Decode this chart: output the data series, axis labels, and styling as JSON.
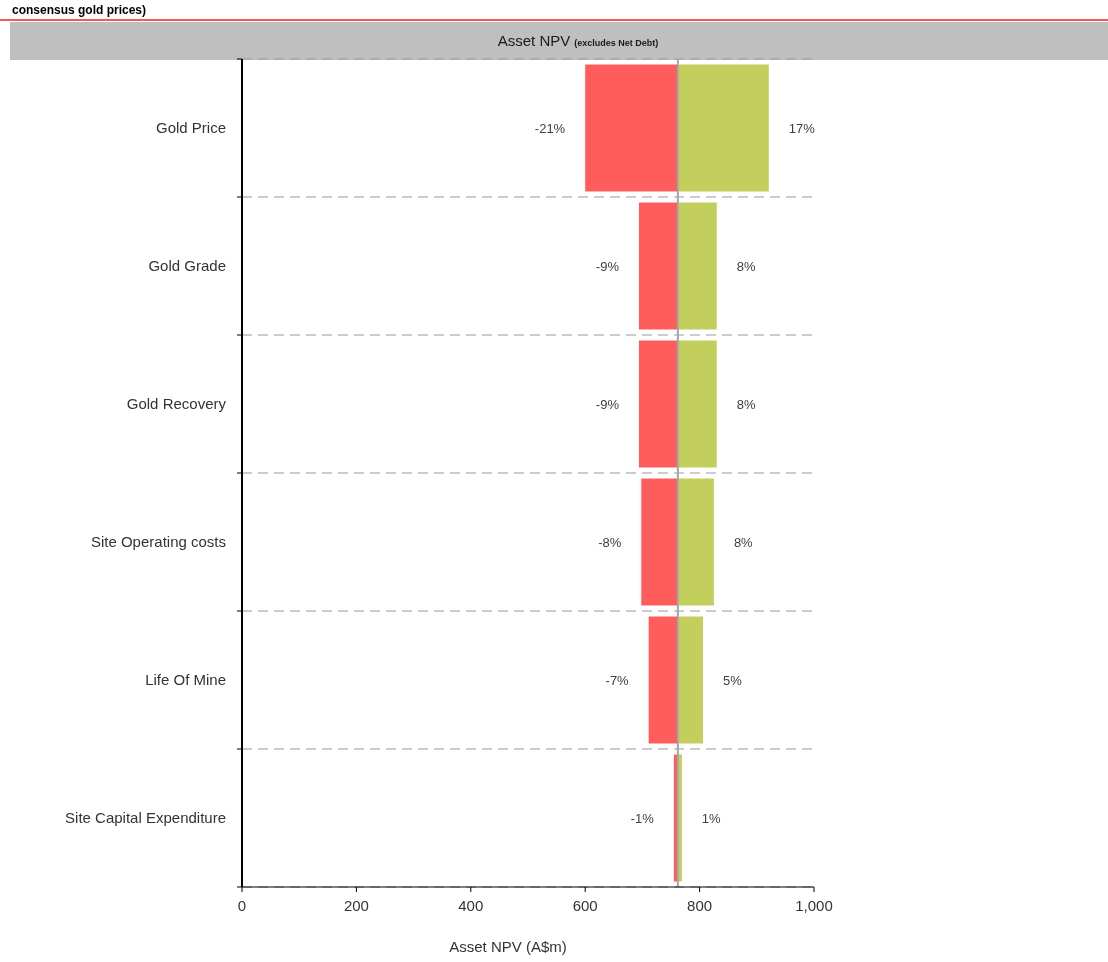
{
  "chart_data": {
    "type": "bar",
    "orientation": "horizontal",
    "title": "Asset NPV",
    "subtitle": "(excludes Net Debt)",
    "xlabel": "Asset NPV (A$m)",
    "annotations": [
      "consensus gold prices)",
      {
        "text": "-21%",
        "x": 600,
        "y": "Gold Price"
      },
      {
        "text": "17%",
        "x": 921,
        "y": "Gold Price"
      },
      {
        "text": "-9%",
        "x": 694,
        "y": "Gold Grade"
      },
      {
        "text": "8%",
        "x": 830,
        "y": "Gold Grade"
      },
      {
        "text": "-9%",
        "x": 694,
        "y": "Gold Recovery"
      },
      {
        "text": "8%",
        "x": 830,
        "y": "Gold Recovery"
      },
      {
        "text": "-8%",
        "x": 698,
        "y": "Site Operating costs"
      },
      {
        "text": "8%",
        "x": 825,
        "y": "Site Operating costs"
      },
      {
        "text": "-7%",
        "x": 711,
        "y": "Life Of Mine"
      },
      {
        "text": "5%",
        "x": 806,
        "y": "Life Of Mine"
      },
      {
        "text": "-1%",
        "x": 755,
        "y": "Site Capital Expenditure"
      },
      {
        "text": "1%",
        "x": 769,
        "y": "Site Capital Expenditure"
      }
    ],
    "categories": [
      "Gold Price",
      "Gold Grade",
      "Gold Recovery",
      "Site Operating costs",
      "Life Of Mine",
      "Site Capital Expenditure"
    ],
    "series": [
      {
        "color": "#ff5c5c",
        "base": [
          600,
          694,
          694,
          698,
          711,
          755
        ],
        "values": [
          162,
          68,
          68,
          64,
          51,
          7
        ]
      },
      {
        "color": "#c3cf5c",
        "base": [
          762,
          762,
          762,
          762,
          762,
          762
        ],
        "values": [
          159,
          68,
          68,
          63,
          44,
          7
        ]
      }
    ],
    "xlim": [
      0,
      1000
    ],
    "xticks": [
      0,
      200,
      400,
      600,
      800,
      {
        "value": 1000,
        "label": "1,000"
      }
    ],
    "ref_lines": [
      {
        "axis": "x",
        "value": 762,
        "color": "#a6a6a6"
      }
    ],
    "grid": "y"
  }
}
